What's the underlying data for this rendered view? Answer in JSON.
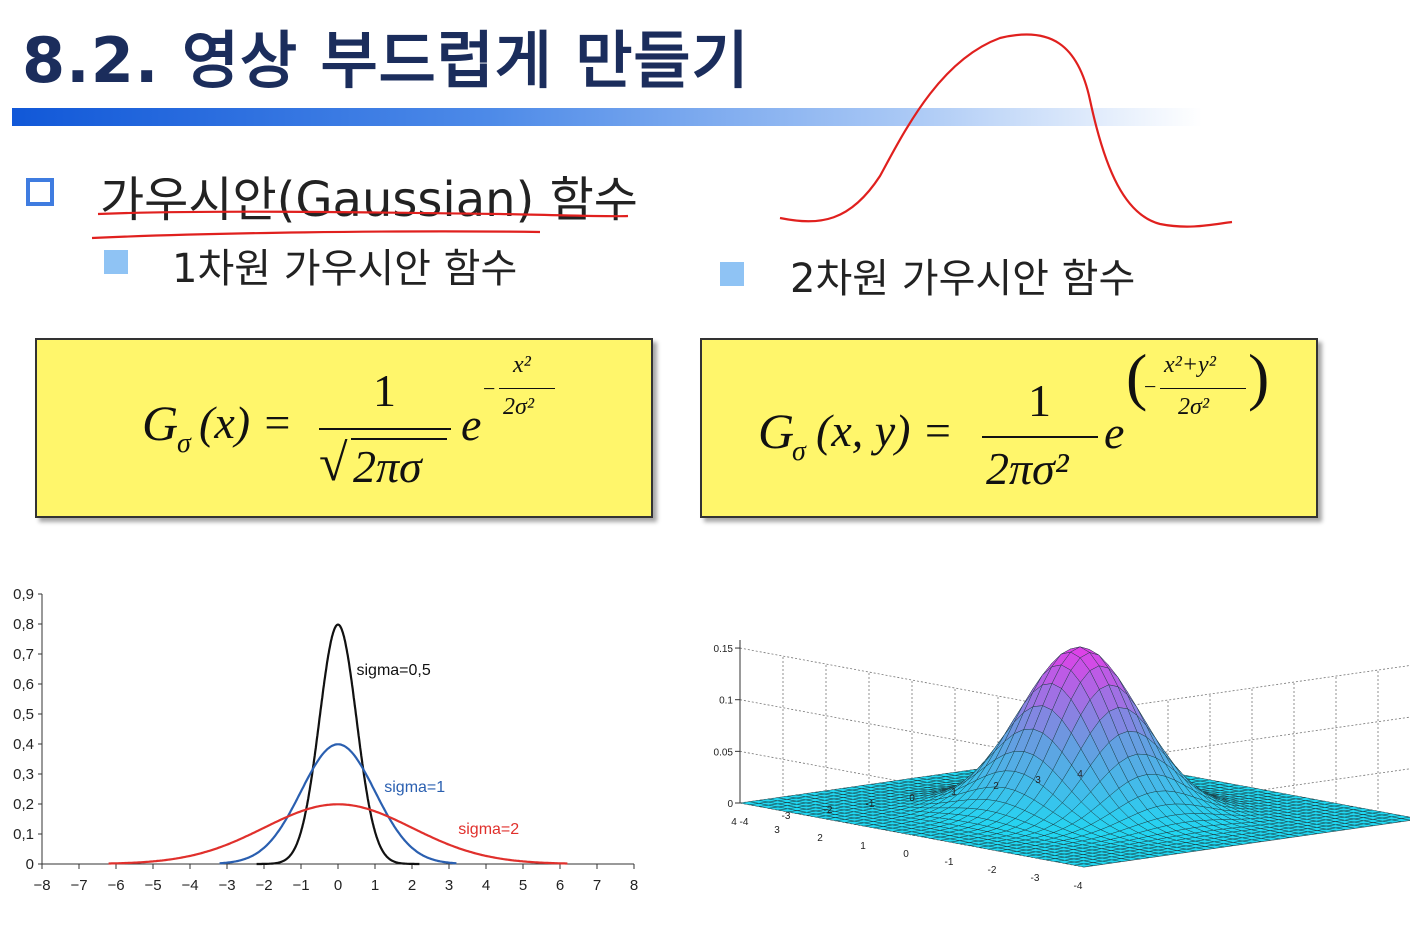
{
  "slide": {
    "title": "8.2. 영상 부드럽게 만들기",
    "heading": "가우시안(Gaussian) 함수",
    "sub1": "1차원 가우시안 함수",
    "sub2": "2차원 가우시안 함수",
    "ink_color": "#e0201e",
    "accent": "#1158d8",
    "box_color": "#fff66b"
  },
  "formula1": {
    "lhs": "G",
    "sub": "σ",
    "args": "(x) =",
    "num": "1",
    "den_sqrt": "√",
    "den": "2πσ",
    "e": "e",
    "exp_minus": "−",
    "exp_num": "x²",
    "exp_den": "2σ²"
  },
  "formula2": {
    "lhs": "G",
    "sub": "σ",
    "args": "(x, y) =",
    "num": "1",
    "den": "2πσ²",
    "e": "e",
    "exp_open": "(",
    "exp_minus": "−",
    "exp_num": "x²+y²",
    "exp_den": "2σ²",
    "exp_close": ")"
  },
  "chart_data": [
    {
      "type": "line",
      "title": "",
      "xlabel": "",
      "ylabel": "",
      "xlim": [
        -8,
        8
      ],
      "ylim": [
        0,
        0.9
      ],
      "xticks": [
        "−8",
        "−7",
        "−6",
        "−5",
        "−4",
        "−3",
        "−2",
        "−1",
        "0",
        "1",
        "2",
        "3",
        "4",
        "5",
        "6",
        "7",
        "8"
      ],
      "yticks": [
        "0",
        "0,1",
        "0,2",
        "0,3",
        "0,4",
        "0,5",
        "0,6",
        "0,7",
        "0,8",
        "0,9"
      ],
      "grid": false,
      "series": [
        {
          "name": "sigma=0,5",
          "sigma": 0.5,
          "peak": 0.798,
          "x_range": [
            -2.2,
            2.2
          ],
          "color": "#111111"
        },
        {
          "name": "sigma=1",
          "sigma": 1,
          "peak": 0.399,
          "x_range": [
            -3.2,
            3.2
          ],
          "color": "#2a5fb0"
        },
        {
          "name": "sigma=2",
          "sigma": 2,
          "peak": 0.199,
          "x_range": [
            -6.2,
            6.2
          ],
          "color": "#e0302c"
        }
      ]
    },
    {
      "type": "surface",
      "title": "",
      "zlim": [
        0,
        0.15
      ],
      "zticks": [
        "0",
        "0.05",
        "0.1",
        "0.15"
      ],
      "xticks": [
        "4",
        "3",
        "2",
        "1",
        "0",
        "-1",
        "-2",
        "-3",
        "-4"
      ],
      "yticks": [
        "-4",
        "-3",
        "-2",
        "-1",
        "0",
        "1",
        "2",
        "3",
        "4"
      ],
      "sigma": 1,
      "peak": 0.159,
      "xlim": [
        -4,
        4
      ],
      "ylim": [
        -4,
        4
      ],
      "grid": true,
      "colormap": [
        "#20d8f2",
        "#6a9ae0",
        "#e040e8"
      ]
    }
  ]
}
